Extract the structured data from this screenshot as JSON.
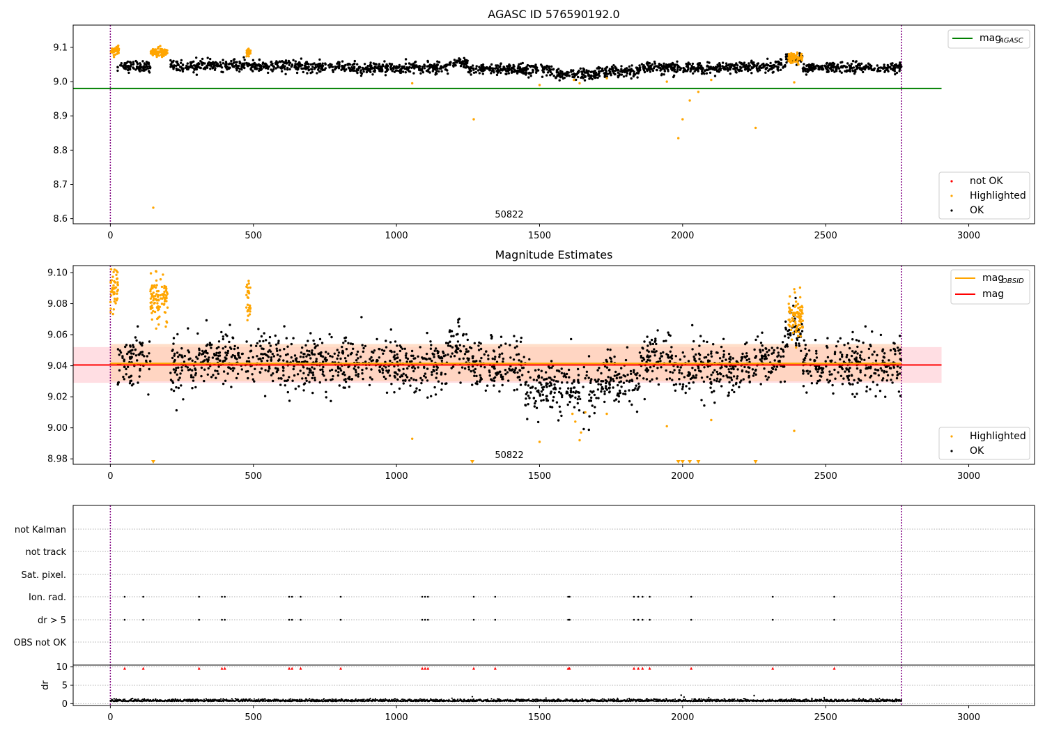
{
  "colors": {
    "ok": "#000000",
    "highlighted": "#ffa500",
    "not_ok": "#ff0000",
    "agasc_line": "#008000",
    "obsid_line": "#ffa500",
    "mag_line": "#ff0000",
    "vline": "#800080",
    "band_outer": "#ffc8d0",
    "band_inner": "#ffd2b4",
    "grid": "#b0b0b0"
  },
  "chart_data": [
    {
      "type": "scatter",
      "title": "AGASC ID 576590192.0",
      "xlim": [
        -130,
        3230
      ],
      "ylim": [
        8.585,
        9.165
      ],
      "xticks": [
        0,
        500,
        1000,
        1500,
        2000,
        2500,
        3000
      ],
      "yticks": [
        8.6,
        8.7,
        8.8,
        8.9,
        9.0,
        9.1
      ],
      "ytick_labels": [
        "8.6",
        "8.7",
        "8.8",
        "8.9",
        "9.0",
        "9.1"
      ],
      "vlines": [
        0,
        2765
      ],
      "hline": {
        "name": "mag",
        "subscript": "AGASC",
        "y": 8.98,
        "x_range": [
          -130,
          2905
        ]
      },
      "obs_label": {
        "text": "50822",
        "x": 1385
      },
      "legend_top": [
        {
          "name": "mag",
          "subscript": "AGASC",
          "marker": "line",
          "color": "agasc_line"
        }
      ],
      "legend_bottom": [
        {
          "name": "not OK",
          "marker": "dot",
          "color": "not_ok"
        },
        {
          "name": "Highlighted",
          "marker": "dot",
          "color": "highlighted"
        },
        {
          "name": "OK",
          "marker": "dot",
          "color": "ok"
        }
      ],
      "ok_segments": [
        [
          25,
          140,
          9.045
        ],
        [
          210,
          300,
          9.045
        ],
        [
          300,
          480,
          9.048
        ],
        [
          480,
          700,
          9.045
        ],
        [
          700,
          1000,
          9.04
        ],
        [
          1000,
          1180,
          9.04
        ],
        [
          1180,
          1250,
          9.055
        ],
        [
          1250,
          1550,
          9.035
        ],
        [
          1550,
          1700,
          9.02
        ],
        [
          1700,
          1850,
          9.03
        ],
        [
          1850,
          1960,
          9.04
        ],
        [
          1960,
          2200,
          9.04
        ],
        [
          2200,
          2360,
          9.045
        ],
        [
          2360,
          2420,
          9.065
        ],
        [
          2420,
          2765,
          9.04
        ]
      ],
      "highlight_clusters": [
        [
          0,
          30,
          9.09
        ],
        [
          140,
          200,
          9.085
        ],
        [
          475,
          490,
          9.085
        ],
        [
          2370,
          2420,
          9.07
        ]
      ],
      "highlight_points": [
        [
          1055,
          8.995
        ],
        [
          1270,
          8.89
        ],
        [
          1500,
          8.99
        ],
        [
          1620,
          9.005
        ],
        [
          1640,
          8.995
        ],
        [
          1735,
          9.01
        ],
        [
          1945,
          9.0
        ],
        [
          1985,
          8.835
        ],
        [
          2000,
          8.89
        ],
        [
          2025,
          8.945
        ],
        [
          2055,
          8.97
        ],
        [
          2100,
          9.005
        ],
        [
          2255,
          8.865
        ],
        [
          2390,
          8.998
        ],
        [
          150,
          8.632
        ]
      ]
    },
    {
      "type": "scatter",
      "title": "Magnitude Estimates",
      "xlim": [
        -130,
        3230
      ],
      "ylim": [
        8.9765,
        9.1045
      ],
      "xticks": [
        0,
        500,
        1000,
        1500,
        2000,
        2500,
        3000
      ],
      "yticks": [
        8.98,
        9.0,
        9.02,
        9.04,
        9.06,
        9.08,
        9.1
      ],
      "ytick_labels": [
        "8.98",
        "9.00",
        "9.02",
        "9.04",
        "9.06",
        "9.08",
        "9.10"
      ],
      "vlines": [
        0,
        2765
      ],
      "mag_line": {
        "y": 9.0405,
        "x_range": [
          -130,
          2905
        ],
        "band": [
          9.029,
          9.052
        ]
      },
      "obsid_line": {
        "y": 9.0415,
        "x_range": [
          0,
          2765
        ],
        "band": [
          9.03,
          9.054
        ]
      },
      "obs_label": {
        "text": "50822",
        "x": 1385
      },
      "legend_top": [
        {
          "name": "mag",
          "subscript": "OBSID",
          "marker": "line",
          "color": "obsid_line"
        },
        {
          "name": "mag",
          "subscript": "",
          "marker": "line",
          "color": "mag_line"
        }
      ],
      "legend_bottom": [
        {
          "name": "Highlighted",
          "marker": "dot",
          "color": "highlighted"
        },
        {
          "name": "OK",
          "marker": "dot",
          "color": "ok"
        }
      ],
      "ok_segments": [
        [
          25,
          140,
          9.044
        ],
        [
          210,
          300,
          9.04
        ],
        [
          300,
          480,
          9.046
        ],
        [
          480,
          700,
          9.043
        ],
        [
          700,
          1000,
          9.041
        ],
        [
          1000,
          1180,
          9.04
        ],
        [
          1180,
          1250,
          9.05
        ],
        [
          1250,
          1450,
          9.04
        ],
        [
          1450,
          1700,
          9.025
        ],
        [
          1700,
          1850,
          9.03
        ],
        [
          1850,
          1960,
          9.045
        ],
        [
          1960,
          2200,
          9.038
        ],
        [
          2200,
          2360,
          9.042
        ],
        [
          2360,
          2420,
          9.063
        ],
        [
          2420,
          2765,
          9.04
        ]
      ],
      "highlight_clusters": [
        [
          0,
          30,
          9.088
        ],
        [
          140,
          200,
          9.083
        ],
        [
          475,
          490,
          9.085
        ],
        [
          2370,
          2420,
          9.071
        ]
      ],
      "highlight_points": [
        [
          1055,
          8.993
        ],
        [
          1500,
          8.991
        ],
        [
          1615,
          9.009
        ],
        [
          1625,
          9.004
        ],
        [
          1640,
          8.992
        ],
        [
          1645,
          8.997
        ],
        [
          1660,
          9.01
        ],
        [
          1735,
          9.009
        ],
        [
          1945,
          9.001
        ],
        [
          2100,
          9.005
        ],
        [
          2390,
          8.998
        ]
      ],
      "triangle_markers": [
        150,
        1265,
        1985,
        2000,
        2025,
        2055,
        2255
      ]
    },
    {
      "type": "scatter",
      "title": "",
      "xlim": [
        -130,
        3230
      ],
      "xticks": [
        0,
        500,
        1000,
        1500,
        2000,
        2500,
        3000
      ],
      "vlines": [
        0,
        2765
      ],
      "flag_rows": [
        "not Kalman",
        "not track",
        "Sat. pixel.",
        "Ion. rad.",
        "dr > 5",
        "OBS not OK"
      ],
      "flag_events": [
        50,
        115,
        310,
        390,
        400,
        625,
        635,
        665,
        805,
        1090,
        1100,
        1110,
        1270,
        1345,
        1600,
        1605,
        1830,
        1845,
        1860,
        1885,
        2030,
        2315,
        2530
      ],
      "dr_ylabel": "dr",
      "dr_yticks": [
        0,
        5,
        10
      ],
      "dr_ylim": [
        -0.5,
        10.5
      ],
      "dr_baseline": 0.6,
      "dr_spikes": [
        [
          1995,
          2.3
        ],
        [
          2005,
          1.8
        ],
        [
          2250,
          2.2
        ],
        [
          1265,
          1.9
        ]
      ]
    }
  ]
}
